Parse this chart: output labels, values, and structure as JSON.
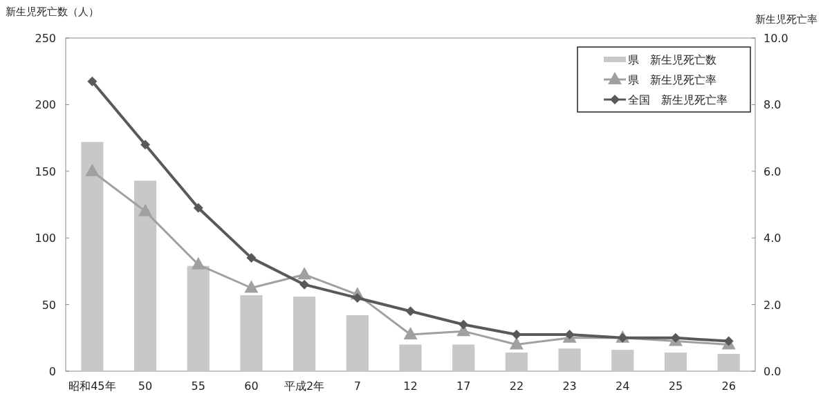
{
  "chart_data": {
    "type": "bar",
    "ylabel": "新生児死亡数（人）",
    "y2label": "新生児死亡率",
    "categories": [
      "昭和45年",
      "50",
      "55",
      "60",
      "平成2年",
      "7",
      "12",
      "17",
      "22",
      "23",
      "24",
      "25",
      "26"
    ],
    "series": [
      {
        "name": "県　新生児死亡数",
        "color": "#c8c8c8",
        "values": [
          172,
          143,
          79,
          57,
          56,
          42,
          20,
          20,
          14,
          17,
          16,
          14,
          13
        ]
      },
      {
        "name": "県　新生児死亡率",
        "type": "line",
        "axis": "y2",
        "marker": "triangle",
        "color": "#a0a0a0",
        "values": [
          6.0,
          4.8,
          3.2,
          2.5,
          2.9,
          2.3,
          1.1,
          1.2,
          0.8,
          1.0,
          1.0,
          0.9,
          0.8
        ]
      },
      {
        "name": "全国　新生児死亡率",
        "type": "line",
        "axis": "y2",
        "marker": "diamond",
        "color": "#595959",
        "values": [
          8.7,
          6.8,
          4.9,
          3.4,
          2.6,
          2.2,
          1.8,
          1.4,
          1.1,
          1.1,
          1.0,
          1.0,
          0.9
        ]
      }
    ],
    "ylim": [
      0,
      250
    ],
    "yticks": [
      0,
      50,
      100,
      150,
      200,
      250
    ],
    "y2lim": [
      0,
      10
    ],
    "y2ticks": [
      {
        "value": 0,
        "label": "0.0"
      },
      {
        "value": 2,
        "label": "2.0"
      },
      {
        "value": 4,
        "label": "4.0"
      },
      {
        "value": 6,
        "label": "6.0"
      },
      {
        "value": 8,
        "label": "8.0"
      },
      {
        "value": 10,
        "label": "10.0"
      }
    ],
    "legend": "top right",
    "grid": false
  }
}
